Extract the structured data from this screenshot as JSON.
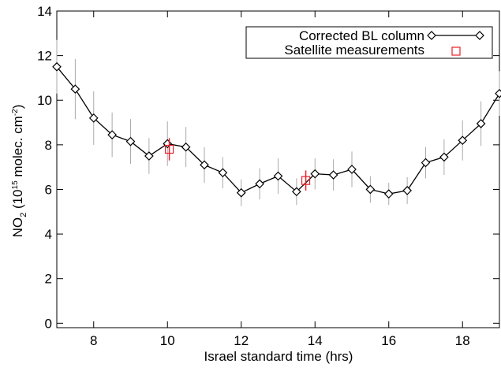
{
  "chart_data": {
    "type": "line",
    "xlabel": "Israel standard time (hrs)",
    "ylabel": {
      "parts": [
        "NO",
        "2",
        " (10",
        "15",
        " molec. cm",
        "-2",
        ")"
      ]
    },
    "xlim": [
      7,
      19
    ],
    "ylim": [
      -0.2,
      14
    ],
    "xticks": [
      8,
      10,
      12,
      14,
      16,
      18
    ],
    "yticks": [
      0,
      2,
      4,
      6,
      8,
      10,
      12,
      14
    ],
    "legend": "upper right",
    "series": [
      {
        "name": "Corrected BL column",
        "color": "#000000",
        "marker": "diamond",
        "error_color": "#aaaaaa",
        "x": [
          7,
          7.5,
          8,
          8.5,
          9,
          9.5,
          10,
          10.5,
          11,
          11.5,
          12,
          12.5,
          13,
          13.5,
          14,
          14.5,
          15,
          15.5,
          16,
          16.5,
          17,
          17.5,
          18,
          18.5,
          19
        ],
        "values": [
          11.5,
          10.5,
          9.2,
          8.45,
          8.15,
          7.5,
          8.05,
          7.9,
          7.1,
          6.75,
          5.85,
          6.25,
          6.6,
          5.9,
          6.7,
          6.65,
          6.9,
          6.0,
          5.8,
          5.95,
          7.2,
          7.45,
          8.2,
          8.95,
          10.3
        ],
        "errors": [
          1.2,
          1.35,
          1.2,
          1.0,
          1.0,
          0.8,
          1.0,
          0.9,
          0.8,
          0.7,
          0.6,
          0.7,
          0.8,
          0.6,
          0.7,
          0.7,
          0.8,
          0.6,
          0.5,
          0.6,
          0.7,
          0.8,
          0.9,
          1.0,
          1.0
        ]
      },
      {
        "name": "Satellite measurements",
        "color": "#e8202a",
        "marker": "square",
        "error_color": "#e8202a",
        "x": [
          10.05,
          13.75
        ],
        "values": [
          7.8,
          6.4
        ],
        "errors": [
          0.5,
          0.45
        ]
      }
    ]
  }
}
